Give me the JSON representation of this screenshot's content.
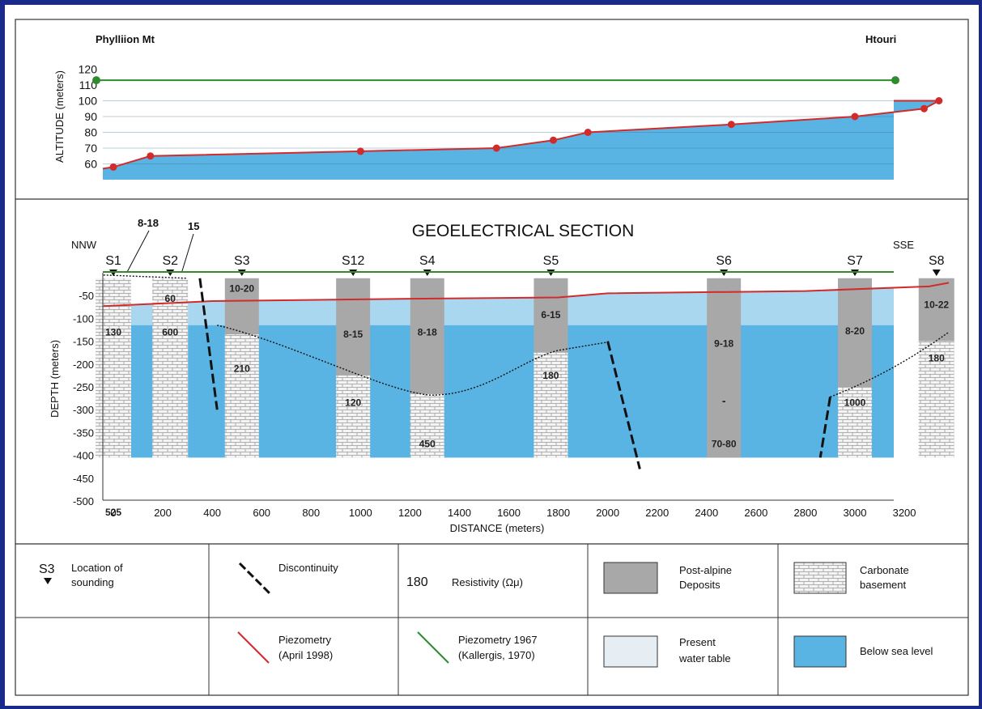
{
  "top_panel": {
    "left_label": "Phylliion Mt",
    "right_label": "Htouri",
    "ylabel": "ALTITUDE (meters)",
    "yticks": [
      "120",
      "110",
      "100",
      "90",
      "80",
      "70",
      "60"
    ]
  },
  "section": {
    "title": "GEOELECTRICAL SECTION",
    "left_dir": "NNW",
    "right_dir": "SSE",
    "ylabel": "DEPTH (meters)",
    "xlabel": "DISTANCE (meters)",
    "yticks": [
      "-50",
      "-100",
      "-150",
      "-200",
      "-250",
      "-300",
      "-350",
      "-400",
      "-450",
      "-500"
    ],
    "xticks": [
      "0",
      "200",
      "400",
      "600",
      "800",
      "1000",
      "1200",
      "1400",
      "1600",
      "1800",
      "2000",
      "2200",
      "2400",
      "2600",
      "2800",
      "3000",
      "3200"
    ],
    "callouts": [
      "8-18",
      "15"
    ],
    "dash": "-"
  },
  "chart_data": {
    "type": "line",
    "altitude_profile": {
      "x": [
        0,
        150,
        1000,
        1550,
        1780,
        1920,
        2500,
        3000,
        3280,
        3340
      ],
      "y": [
        58,
        65,
        68,
        70,
        75,
        80,
        85,
        90,
        95,
        100
      ],
      "ylim": [
        50,
        120
      ]
    },
    "piezometry_1967_altitude": 113,
    "soundings": [
      {
        "name": "S1",
        "x": 0,
        "resistivity": [
          "130",
          "525"
        ]
      },
      {
        "name": "S2",
        "x": 230,
        "resistivity": [
          "60",
          "600"
        ]
      },
      {
        "name": "S3",
        "x": 520,
        "resistivity": [
          "10-20",
          "210"
        ]
      },
      {
        "name": "S12",
        "x": 970,
        "resistivity": [
          "8-15",
          "120"
        ]
      },
      {
        "name": "S4",
        "x": 1270,
        "resistivity": [
          "8-18",
          "450"
        ]
      },
      {
        "name": "S5",
        "x": 1770,
        "resistivity": [
          "6-15",
          "180"
        ]
      },
      {
        "name": "S6",
        "x": 2470,
        "resistivity": [
          "9-18",
          "70-80"
        ]
      },
      {
        "name": "S7",
        "x": 3000,
        "resistivity": [
          "8-20",
          "1000"
        ]
      },
      {
        "name": "S8",
        "x": 3330,
        "resistivity": [
          "10-22",
          "180"
        ]
      }
    ],
    "depth_range": [
      -500,
      0
    ],
    "distance_range": [
      -40,
      3380
    ]
  },
  "legend": {
    "sounding_symbol": "S3",
    "sounding_text": [
      "Location of",
      "sounding"
    ],
    "discontinuity": "Discontinuity",
    "resistivity_value": "180",
    "resistivity_text": "Resistivity (Ωμ)",
    "postalpine": [
      "Post-alpine",
      "Deposits"
    ],
    "carbonate": [
      "Carbonate",
      "basement"
    ],
    "piezo1998": [
      "Piezometry",
      "(April 1998)"
    ],
    "piezo1967": [
      "Piezometry  1967",
      "(Kallergis, 1970)"
    ],
    "watertable": [
      "Present",
      "water table"
    ],
    "sealevel": "Below sea level"
  },
  "colors": {
    "sea": "#5ab4e3",
    "water_table": "#a9d7f0",
    "post_alpine": "#a8a8a8",
    "piezo_1998": "#d12b2b",
    "piezo_1967": "#2e8b2e"
  }
}
